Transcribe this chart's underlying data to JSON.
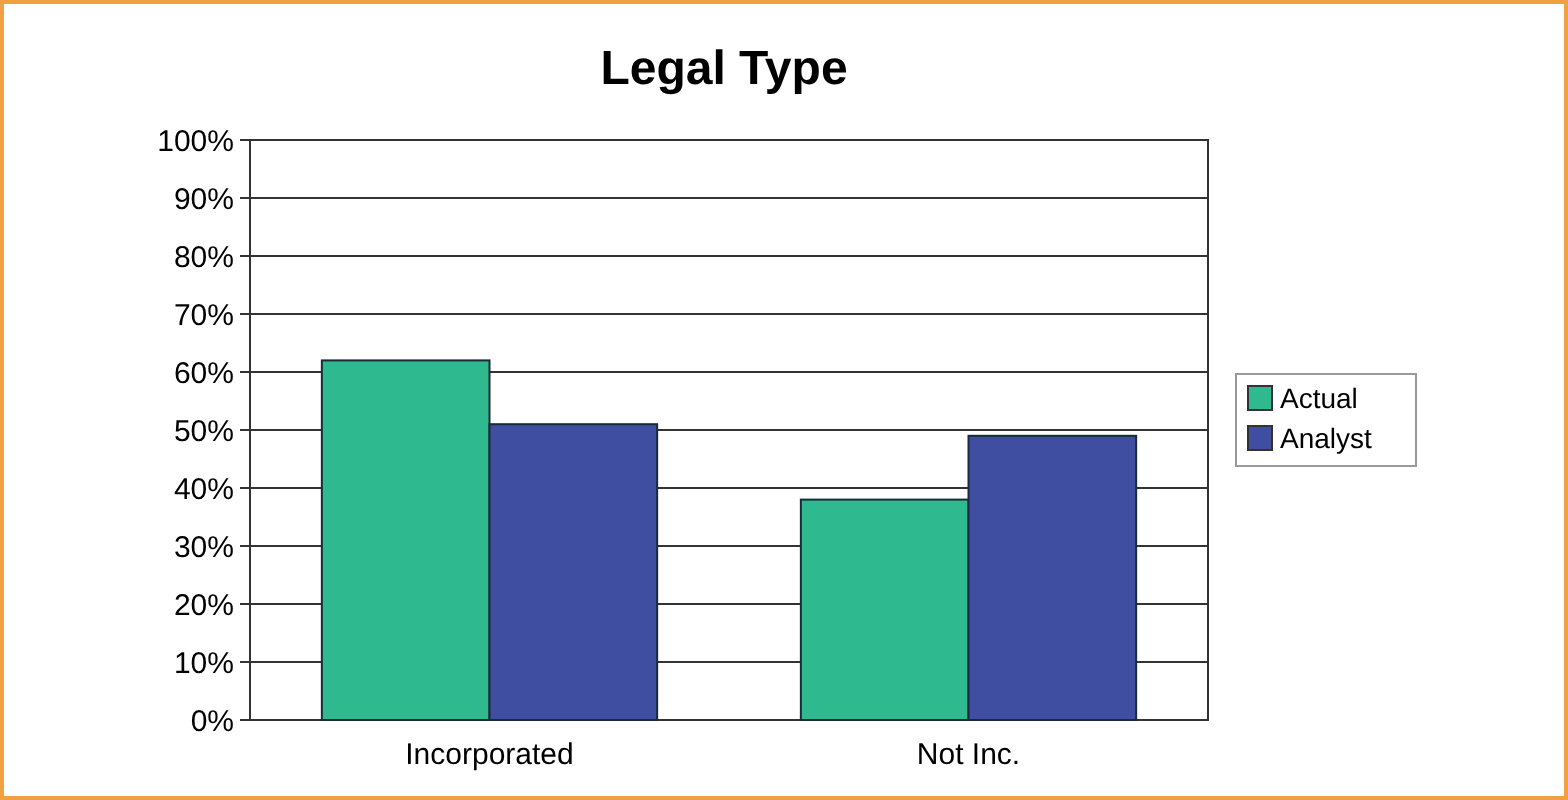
{
  "chart_data": {
    "type": "bar",
    "title": "Legal Type",
    "categories": [
      "Incorporated",
      "Not Inc."
    ],
    "series": [
      {
        "name": "Actual",
        "color": "#2fb98e",
        "values": [
          62,
          38
        ]
      },
      {
        "name": "Analyst",
        "color": "#3f4ea0",
        "values": [
          51,
          49
        ]
      }
    ],
    "ylim": [
      0,
      100
    ],
    "yticks": [
      {
        "value": 0,
        "label": "0%"
      },
      {
        "value": 10,
        "label": "10%"
      },
      {
        "value": 20,
        "label": "20%"
      },
      {
        "value": 30,
        "label": "30%"
      },
      {
        "value": 40,
        "label": "40%"
      },
      {
        "value": 50,
        "label": "50%"
      },
      {
        "value": 60,
        "label": "60%"
      },
      {
        "value": 70,
        "label": "70%"
      },
      {
        "value": 80,
        "label": "80%"
      },
      {
        "value": 90,
        "label": "90%"
      },
      {
        "value": 100,
        "label": "100%"
      }
    ],
    "grid": "y",
    "legend": "right"
  }
}
